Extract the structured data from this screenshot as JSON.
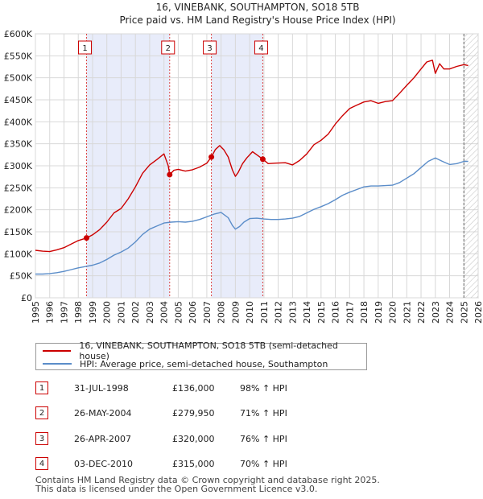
{
  "chart_data": {
    "type": "line",
    "title": "16, VINEBANK, SOUTHAMPTON, SO18 5TB",
    "subtitle": "Price paid vs. HM Land Registry's House Price Index (HPI)",
    "xlim": [
      1995,
      2026
    ],
    "ylim": [
      0,
      600000
    ],
    "y_ticks": [
      0,
      50000,
      100000,
      150000,
      200000,
      250000,
      300000,
      350000,
      400000,
      450000,
      500000,
      550000,
      600000
    ],
    "y_tick_labels": [
      "£0",
      "£50K",
      "£100K",
      "£150K",
      "£200K",
      "£250K",
      "£300K",
      "£350K",
      "£400K",
      "£450K",
      "£500K",
      "£550K",
      "£600K"
    ],
    "x_ticks": [
      1995,
      1996,
      1997,
      1998,
      1999,
      2000,
      2001,
      2002,
      2003,
      2004,
      2005,
      2006,
      2007,
      2008,
      2009,
      2010,
      2011,
      2012,
      2013,
      2014,
      2015,
      2016,
      2017,
      2018,
      2019,
      2020,
      2021,
      2022,
      2023,
      2024,
      2025,
      2026
    ],
    "x_tick_labels": [
      "1995",
      "1996",
      "1997",
      "1998",
      "1999",
      "2000",
      "2001",
      "2002",
      "2003",
      "2004",
      "2005",
      "2006",
      "2007",
      "2008",
      "2009",
      "2010",
      "2011",
      "2012",
      "2013",
      "2014",
      "2015",
      "2016",
      "2017",
      "2018",
      "2019",
      "2020",
      "2021",
      "2022",
      "2023",
      "2024",
      "2025",
      "2026"
    ],
    "grid": true,
    "shaded_periods": [
      [
        1998.58,
        2004.4
      ],
      [
        2007.32,
        2010.92
      ]
    ],
    "dashed_marker_x": [
      1998.58,
      2004.4,
      2007.32,
      2010.92
    ],
    "marker_labels": [
      "1",
      "2",
      "3",
      "4"
    ],
    "forecast_from": 2025.0,
    "series": [
      {
        "name": "16, VINEBANK, SOUTHAMPTON, SO18 5TB (semi-detached house)",
        "color": "#cc0000",
        "x": [
          1995.0,
          1995.5,
          1996.0,
          1996.5,
          1997.0,
          1997.5,
          1998.0,
          1998.58,
          1999.0,
          1999.5,
          2000.0,
          2000.5,
          2001.0,
          2001.5,
          2002.0,
          2002.5,
          2003.0,
          2003.5,
          2004.0,
          2004.3,
          2004.4,
          2004.7,
          2005.0,
          2005.5,
          2006.0,
          2006.5,
          2007.0,
          2007.32,
          2007.6,
          2007.9,
          2008.2,
          2008.5,
          2008.8,
          2009.0,
          2009.2,
          2009.5,
          2009.8,
          2010.2,
          2010.5,
          2010.92,
          2011.3,
          2011.8,
          2012.5,
          2013.0,
          2013.5,
          2014.0,
          2014.5,
          2015.0,
          2015.5,
          2016.0,
          2016.5,
          2017.0,
          2017.5,
          2018.0,
          2018.5,
          2019.0,
          2019.5,
          2020.0,
          2020.5,
          2021.0,
          2021.5,
          2022.0,
          2022.4,
          2022.8,
          2023.0,
          2023.3,
          2023.6,
          2024.0,
          2024.5,
          2025.0,
          2025.3
        ],
        "values": [
          108000,
          106000,
          105000,
          109000,
          114000,
          122000,
          130000,
          136000,
          143000,
          155000,
          172000,
          193000,
          203000,
          225000,
          252000,
          283000,
          302000,
          314000,
          327000,
          300000,
          279950,
          290000,
          292000,
          288000,
          291000,
          297000,
          306000,
          320000,
          337000,
          346000,
          336000,
          320000,
          290000,
          276000,
          285000,
          305000,
          318000,
          332000,
          325000,
          315000,
          305000,
          306000,
          307000,
          302000,
          312000,
          327000,
          348000,
          358000,
          372000,
          395000,
          414000,
          430000,
          438000,
          445000,
          448000,
          442000,
          446000,
          448000,
          465000,
          483000,
          500000,
          520000,
          536000,
          540000,
          510000,
          532000,
          520000,
          520000,
          526000,
          530000,
          528000
        ]
      },
      {
        "name": "HPI: Average price, semi-detached house, Southampton",
        "color": "#5b8dc9",
        "x": [
          1995.0,
          1995.5,
          1996.0,
          1996.5,
          1997.0,
          1997.5,
          1998.0,
          1998.5,
          1999.0,
          1999.5,
          2000.0,
          2000.5,
          2001.0,
          2001.5,
          2002.0,
          2002.5,
          2003.0,
          2003.5,
          2004.0,
          2004.5,
          2005.0,
          2005.5,
          2006.0,
          2006.5,
          2007.0,
          2007.5,
          2008.0,
          2008.5,
          2008.8,
          2009.0,
          2009.3,
          2009.6,
          2010.0,
          2010.5,
          2011.0,
          2011.5,
          2012.0,
          2012.5,
          2013.0,
          2013.5,
          2014.0,
          2014.5,
          2015.0,
          2015.5,
          2016.0,
          2016.5,
          2017.0,
          2017.5,
          2018.0,
          2018.5,
          2019.0,
          2019.5,
          2020.0,
          2020.5,
          2021.0,
          2021.5,
          2022.0,
          2022.5,
          2023.0,
          2023.5,
          2024.0,
          2024.5,
          2025.0,
          2025.3
        ],
        "values": [
          54000,
          54000,
          55000,
          57000,
          60000,
          64000,
          68000,
          71000,
          74000,
          79000,
          87000,
          97000,
          104000,
          113000,
          127000,
          144000,
          156000,
          163000,
          170000,
          172000,
          173000,
          172000,
          174000,
          178000,
          184000,
          190000,
          194000,
          182000,
          164000,
          156000,
          162000,
          172000,
          180000,
          181000,
          179000,
          178000,
          178000,
          179000,
          181000,
          185000,
          193000,
          201000,
          207000,
          214000,
          223000,
          233000,
          240000,
          246000,
          252000,
          254000,
          254000,
          255000,
          256000,
          262000,
          272000,
          282000,
          296000,
          310000,
          318000,
          310000,
          303000,
          305000,
          310000,
          310000
        ]
      }
    ],
    "sale_points": [
      {
        "x": 1998.58,
        "y": 136000
      },
      {
        "x": 2004.4,
        "y": 279950
      },
      {
        "x": 2007.32,
        "y": 320000
      },
      {
        "x": 2010.92,
        "y": 315000
      }
    ]
  },
  "legend": {
    "property_label": "16, VINEBANK, SOUTHAMPTON, SO18 5TB (semi-detached house)",
    "hpi_label": "HPI: Average price, semi-detached house, Southampton",
    "property_color": "#cc0000",
    "hpi_color": "#5b8dc9"
  },
  "transactions": [
    {
      "num": "1",
      "date": "31-JUL-1998",
      "price": "£136,000",
      "hpi": "98% ↑ HPI"
    },
    {
      "num": "2",
      "date": "26-MAY-2004",
      "price": "£279,950",
      "hpi": "71% ↑ HPI"
    },
    {
      "num": "3",
      "date": "26-APR-2007",
      "price": "£320,000",
      "hpi": "76% ↑ HPI"
    },
    {
      "num": "4",
      "date": "03-DEC-2010",
      "price": "£315,000",
      "hpi": "70% ↑ HPI"
    }
  ],
  "footer": {
    "line1": "Contains HM Land Registry data © Crown copyright and database right 2025.",
    "line2": "This data is licensed under the Open Government Licence v3.0."
  }
}
